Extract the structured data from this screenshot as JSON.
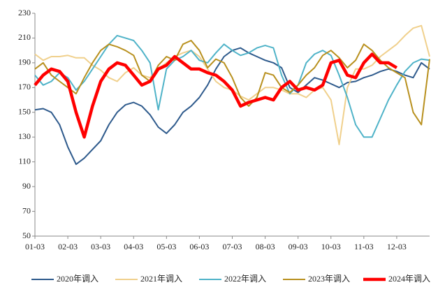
{
  "chart_data": {
    "type": "line",
    "categories": [
      "01-03",
      null,
      null,
      null,
      "02-03",
      null,
      null,
      null,
      "03-03",
      null,
      null,
      null,
      "04-03",
      null,
      null,
      null,
      "05-03",
      null,
      null,
      null,
      "06-03",
      null,
      null,
      null,
      "07-03",
      null,
      null,
      null,
      "08-03",
      null,
      null,
      null,
      "09-03",
      null,
      null,
      null,
      "10-03",
      null,
      null,
      null,
      "11-03",
      null,
      null,
      null,
      "12-03",
      null,
      null,
      null,
      null
    ],
    "series": [
      {
        "name": "2020年调入",
        "color": "#2e5a8c",
        "width": 2,
        "values": [
          152,
          153,
          150,
          140,
          122,
          108,
          113,
          120,
          127,
          140,
          150,
          156,
          158,
          155,
          148,
          138,
          133,
          140,
          150,
          155,
          162,
          172,
          185,
          195,
          200,
          202,
          198,
          195,
          192,
          190,
          186,
          170,
          166,
          172,
          178,
          176,
          173,
          170,
          174,
          175,
          178,
          180,
          183,
          185,
          183,
          180,
          178,
          190,
          185
        ]
      },
      {
        "name": "2021年调入",
        "color": "#f0d08c",
        "width": 2,
        "values": [
          197,
          192,
          195,
          195,
          196,
          194,
          194,
          188,
          184,
          178,
          175,
          182,
          186,
          180,
          178,
          185,
          190,
          195,
          198,
          200,
          195,
          185,
          175,
          170,
          168,
          163,
          160,
          165,
          170,
          170,
          168,
          165,
          165,
          162,
          168,
          170,
          160,
          124,
          170,
          185,
          185,
          188,
          195,
          200,
          205,
          212,
          218,
          220,
          195
        ]
      },
      {
        "name": "2022年调入",
        "color": "#4fb3c8",
        "width": 2,
        "values": [
          180,
          172,
          175,
          182,
          178,
          168,
          175,
          185,
          195,
          205,
          212,
          210,
          208,
          200,
          190,
          152,
          185,
          192,
          195,
          200,
          192,
          190,
          198,
          205,
          200,
          196,
          198,
          202,
          204,
          202,
          180,
          165,
          172,
          190,
          197,
          200,
          196,
          180,
          162,
          140,
          130,
          130,
          145,
          160,
          172,
          183,
          190,
          193,
          192
        ]
      },
      {
        "name": "2023年调入",
        "color": "#b8901e",
        "width": 2,
        "values": [
          185,
          190,
          180,
          175,
          170,
          165,
          178,
          190,
          200,
          205,
          203,
          200,
          196,
          180,
          175,
          188,
          195,
          192,
          205,
          208,
          200,
          186,
          193,
          190,
          178,
          162,
          155,
          162,
          182,
          180,
          170,
          166,
          172,
          180,
          186,
          196,
          200,
          194,
          186,
          192,
          205,
          200,
          192,
          186,
          182,
          178,
          150,
          140,
          193
        ]
      },
      {
        "name": "2024年调入",
        "color": "#ff0000",
        "width": 4.5,
        "values": [
          172,
          180,
          185,
          183,
          175,
          150,
          130,
          155,
          175,
          185,
          190,
          188,
          180,
          172,
          175,
          185,
          188,
          195,
          190,
          185,
          185,
          182,
          180,
          175,
          168,
          155,
          158,
          160,
          162,
          160,
          170,
          175,
          168,
          170,
          168,
          172,
          190,
          192,
          180,
          178,
          190,
          197,
          190,
          190,
          186,
          null,
          null,
          null,
          null
        ]
      }
    ],
    "ylim": [
      50,
      230
    ],
    "yticks": [
      50,
      70,
      90,
      110,
      130,
      150,
      170,
      190,
      210,
      230
    ]
  }
}
